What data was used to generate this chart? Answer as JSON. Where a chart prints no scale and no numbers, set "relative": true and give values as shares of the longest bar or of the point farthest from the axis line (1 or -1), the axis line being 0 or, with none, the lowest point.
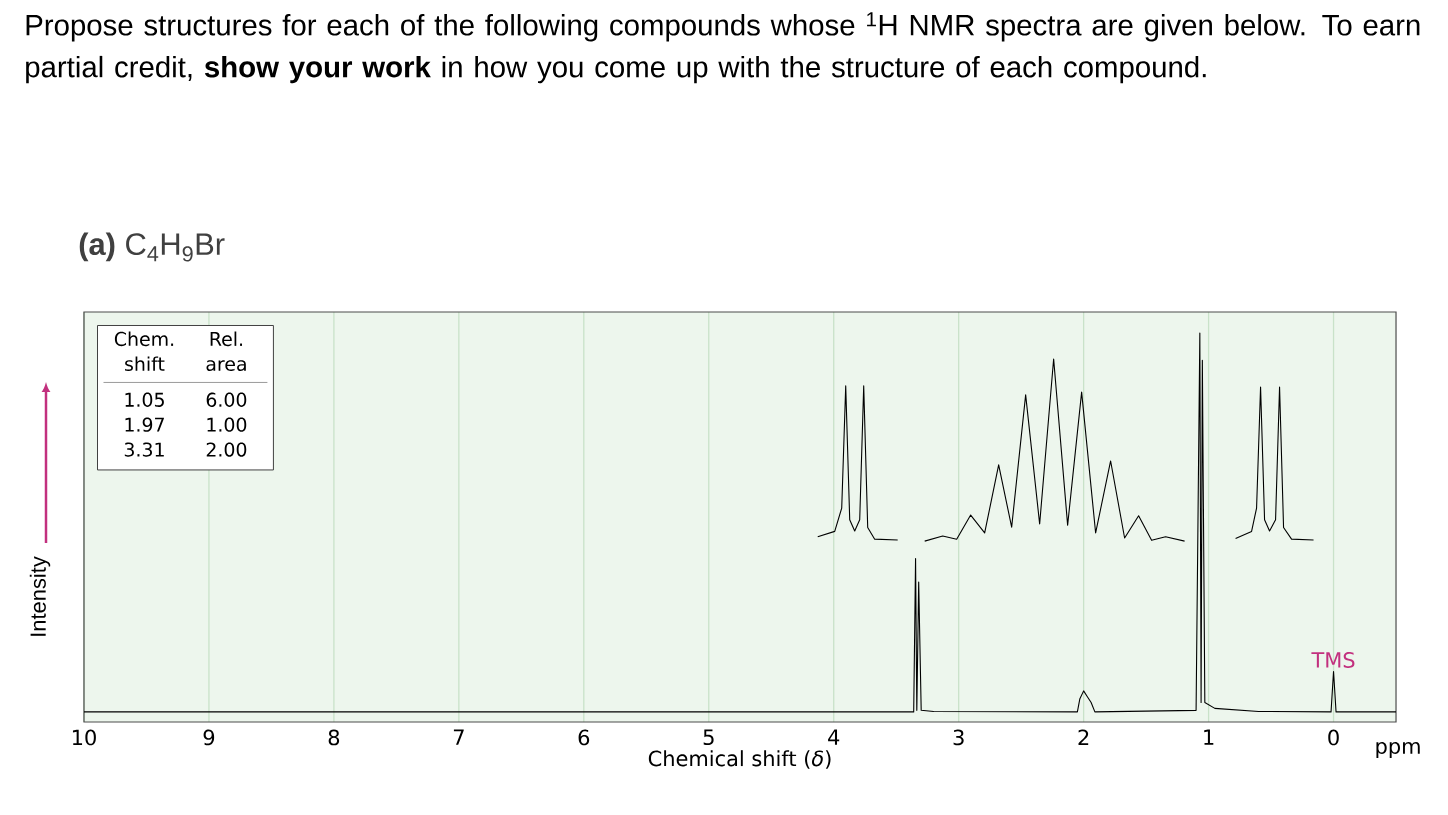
{
  "chart_data": {
    "type": "line",
    "title": "Propose structures for each of the following compounds whose $^{1}$H NMR spectra are given below. To earn partial credit, **show your work** in how you come up with the structure of each compound.",
    "subtitle": "**(a)** C$_{4}$H$_{9}$Br",
    "xlabel": "Chemical shift (*δ*)",
    "ylabel": "Intensity",
    "relative": true,
    "xlim": [
      10,
      -0.5
    ],
    "xticks": [
      10,
      9,
      8,
      7,
      6,
      5,
      4,
      3,
      2,
      1,
      0
    ],
    "grid": "x",
    "series": [
      {
        "color": "#000000",
        "x": [
          10,
          3.36,
          3.345,
          3.335,
          3.32,
          3.3,
          3.2,
          2.05,
          2.03,
          2.0,
          1.97,
          1.94,
          1.91,
          1.1,
          1.07,
          1.06,
          1.05,
          1.03,
          0.95,
          0.6,
          0.02,
          0,
          -0.02,
          -0.5
        ],
        "values": [
          0.026,
          0.026,
          0.42,
          0.03,
          0.36,
          0.03,
          0.027,
          0.026,
          0.06,
          0.08,
          0.065,
          0.05,
          0.026,
          0.03,
          1.0,
          0.05,
          0.93,
          0.05,
          0.035,
          0.027,
          0.026,
          0.13,
          0.026,
          0.026
        ]
      },
      {
        "color": "#000000",
        "x": [
          4.128,
          3.992,
          3.936,
          3.904,
          3.872,
          3.832,
          3.792,
          3.76,
          3.728,
          3.672,
          3.488
        ],
        "values": [
          0.476,
          0.49,
          0.55,
          0.864,
          0.52,
          0.491,
          0.52,
          0.864,
          0.5,
          0.47,
          0.468
        ]
      },
      {
        "color": "#000000",
        "x": [
          3.272,
          3.128,
          3.016,
          2.904,
          2.792,
          2.68,
          2.576,
          2.464,
          2.352,
          2.24,
          2.128,
          2.016,
          1.904,
          1.784,
          1.672,
          1.56,
          1.456,
          1.344,
          1.192
        ],
        "values": [
          0.465,
          0.478,
          0.47,
          0.532,
          0.486,
          0.661,
          0.501,
          0.841,
          0.509,
          0.933,
          0.506,
          0.848,
          0.486,
          0.671,
          0.473,
          0.53,
          0.467,
          0.476,
          0.465
        ]
      },
      {
        "color": "#000000",
        "x": [
          0.784,
          0.656,
          0.616,
          0.584,
          0.552,
          0.512,
          0.464,
          0.432,
          0.4,
          0.336,
          0.16
        ],
        "values": [
          0.472,
          0.49,
          0.55,
          0.861,
          0.52,
          0.491,
          0.52,
          0.861,
          0.5,
          0.47,
          0.468
        ]
      }
    ],
    "annotations": [
      "Chem. shift",
      "Rel. area",
      "1.05",
      "6.00",
      "1.97",
      "1.00",
      "3.31",
      "2.00",
      {
        "text": "TMS",
        "x": 0,
        "y": 0.13
      },
      "ppm"
    ]
  }
}
